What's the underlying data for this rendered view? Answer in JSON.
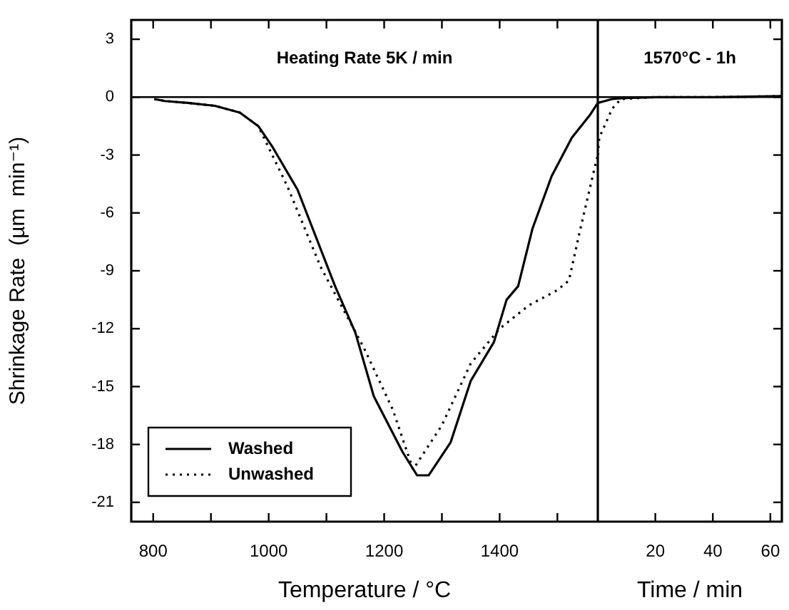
{
  "chart_data": [
    {
      "type": "line",
      "xlabel": "Temperature / °C",
      "ylabel": "Shrinkage Rate  (µm  min⁻¹)",
      "annotations": [
        "Heating Rate 5K / min"
      ],
      "xlim": [
        762,
        1570
      ],
      "xticks": [
        800,
        {
          "value": 900,
          "label": null
        },
        1000,
        {
          "value": 1100,
          "label": null
        },
        1200,
        {
          "value": 1300,
          "label": null
        },
        1400,
        {
          "value": 1500,
          "label": null
        }
      ],
      "ylim": [
        -22,
        4
      ],
      "yticks": [
        3,
        0,
        -3,
        -6,
        -9,
        -12,
        -15,
        -18,
        -21
      ],
      "grid": false,
      "legend": "bottom left",
      "marker": "none",
      "ref_lines": [
        {
          "axis": "y",
          "value": 0,
          "color": "#000000"
        }
      ],
      "series": [
        {
          "name": "Washed",
          "color": "#000000",
          "line_style": "solid",
          "x": [
            802,
            820,
            860,
            907,
            950,
            982,
            1007,
            1050,
            1115,
            1150,
            1182,
            1232,
            1257,
            1277,
            1315,
            1350,
            1390,
            1412,
            1432,
            1457,
            1490,
            1525,
            1557,
            1570
          ],
          "values": [
            -0.1,
            -0.2,
            -0.3,
            -0.45,
            -0.8,
            -1.5,
            -2.6,
            -4.8,
            -9.8,
            -12.2,
            -15.5,
            -18.4,
            -19.6,
            -19.6,
            -17.9,
            -14.7,
            -12.7,
            -10.5,
            -9.8,
            -6.8,
            -4.1,
            -2.1,
            -0.9,
            -0.3
          ]
        },
        {
          "name": "Unwashed",
          "color": "#000000",
          "line_style": "dotted",
          "x": [
            802,
            820,
            860,
            907,
            950,
            982,
            1032,
            1090,
            1165,
            1215,
            1250,
            1300,
            1350,
            1400,
            1450,
            1500,
            1520,
            1540,
            1565,
            1570
          ],
          "values": [
            -0.1,
            -0.2,
            -0.3,
            -0.45,
            -0.8,
            -1.5,
            -4.6,
            -8.8,
            -13,
            -16.2,
            -19.3,
            -17,
            -13.8,
            -12,
            -10.8,
            -10,
            -9.5,
            -6.8,
            -3.6,
            -3.0
          ]
        }
      ]
    },
    {
      "type": "line",
      "xlabel": "Time / min",
      "annotations": [
        "1570°C - 1h"
      ],
      "xlim": [
        0,
        64
      ],
      "xticks": [
        20,
        40,
        60
      ],
      "ylim": [
        -22,
        4
      ],
      "yticks": [
        3,
        0,
        -3,
        -6,
        -9,
        -12,
        -15,
        -18,
        -21
      ],
      "tick_labels": "x",
      "grid": false,
      "legend": false,
      "marker": "none",
      "ref_lines": [
        {
          "axis": "y",
          "value": 0,
          "color": "#000000"
        }
      ],
      "series": [
        {
          "color": "#000000",
          "line_style": "solid",
          "x": [
            0,
            5,
            9,
            20,
            40,
            64
          ],
          "values": [
            -0.3,
            -0.1,
            -0.05,
            0,
            0,
            0.05
          ]
        },
        {
          "color": "#000000",
          "line_style": "dotted",
          "x": [
            0,
            0.5,
            2,
            5,
            8,
            20,
            40,
            64
          ],
          "values": [
            -3.0,
            -2.1,
            -1.6,
            -0.6,
            -0.1,
            0,
            0,
            0.05
          ]
        }
      ]
    }
  ]
}
